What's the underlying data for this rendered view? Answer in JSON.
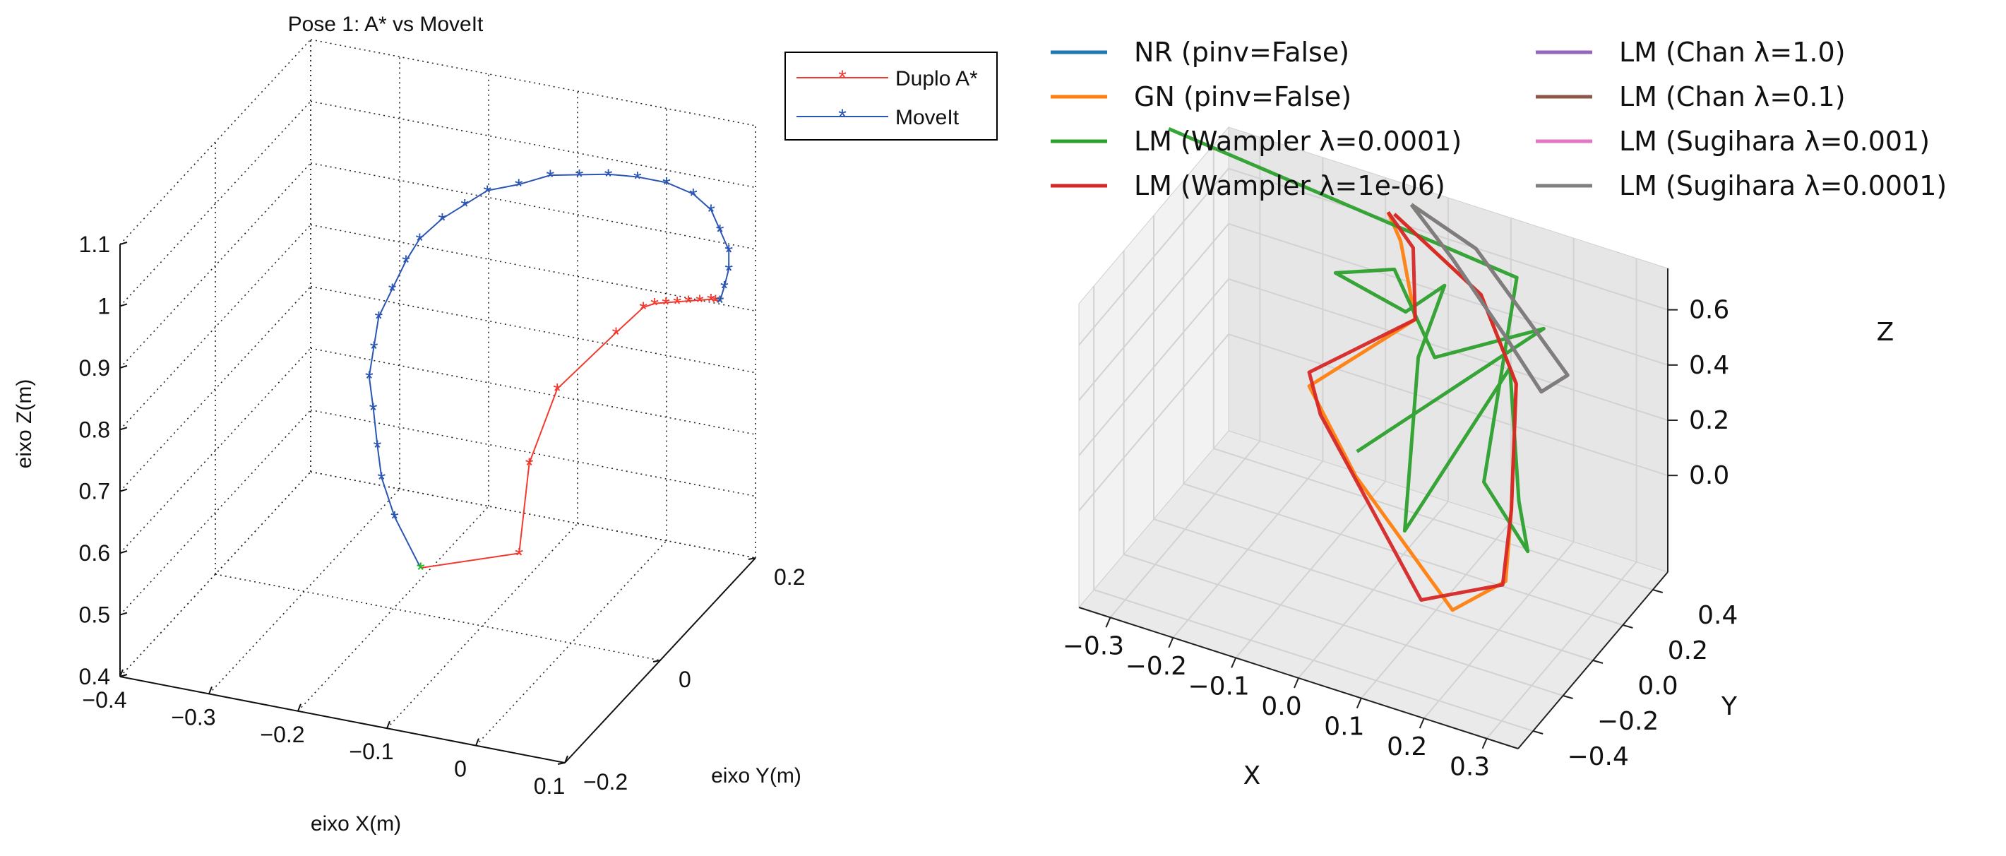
{
  "chart_data": [
    {
      "type": "line3d",
      "title": "Pose 1: A* vs MoveIt",
      "xlabel": "eixo X(m)",
      "ylabel": "eixo Y(m)",
      "zlabel": "eixo Z(m)",
      "xlim": [
        -0.4,
        0.1
      ],
      "ylim": [
        -0.2,
        0.2
      ],
      "zlim": [
        0.4,
        1.1
      ],
      "xticks": [
        "−0.4",
        "−0.3",
        "−0.2",
        "−0.1",
        "0",
        "0.1"
      ],
      "yticks": [
        "−0.2",
        "0",
        "0.2"
      ],
      "zticks": [
        "0.4",
        "0.5",
        "0.6",
        "0.7",
        "0.8",
        "0.9",
        "1",
        "1.1"
      ],
      "grid": true,
      "legend": "top-right",
      "series": [
        {
          "name": "Duplo A*",
          "color": "#f03a30",
          "marker": "*",
          "points": [
            [
              -0.18,
              0.02,
              0.455
            ],
            [
              -0.08,
              0.04,
              0.49
            ],
            [
              -0.09,
              0.08,
              0.6
            ],
            [
              -0.08,
              0.12,
              0.69
            ],
            [
              -0.03,
              0.15,
              0.77
            ],
            [
              -0.01,
              0.17,
              0.8
            ],
            [
              0.0,
              0.175,
              0.805
            ],
            [
              0.01,
              0.18,
              0.805
            ],
            [
              0.02,
              0.185,
              0.805
            ],
            [
              0.03,
              0.19,
              0.805
            ],
            [
              0.04,
              0.195,
              0.805
            ],
            [
              0.05,
              0.2,
              0.805
            ],
            [
              0.055,
              0.2,
              0.805
            ],
            [
              0.06,
              0.2,
              0.805
            ]
          ]
        },
        {
          "name": "MoveIt",
          "color": "#2b55b3",
          "marker": "*",
          "points": [
            [
              -0.18,
              0.02,
              0.455
            ],
            [
              -0.22,
              0.04,
              0.51
            ],
            [
              -0.24,
              0.05,
              0.56
            ],
            [
              -0.25,
              0.06,
              0.6
            ],
            [
              -0.26,
              0.07,
              0.65
            ],
            [
              -0.27,
              0.08,
              0.69
            ],
            [
              -0.27,
              0.09,
              0.73
            ],
            [
              -0.27,
              0.1,
              0.77
            ],
            [
              -0.26,
              0.11,
              0.81
            ],
            [
              -0.25,
              0.12,
              0.85
            ],
            [
              -0.24,
              0.13,
              0.88
            ],
            [
              -0.22,
              0.14,
              0.91
            ],
            [
              -0.2,
              0.15,
              0.93
            ],
            [
              -0.18,
              0.16,
              0.95
            ],
            [
              -0.15,
              0.17,
              0.96
            ],
            [
              -0.12,
              0.18,
              0.975
            ],
            [
              -0.09,
              0.185,
              0.98
            ],
            [
              -0.06,
              0.19,
              0.985
            ],
            [
              -0.03,
              0.195,
              0.985
            ],
            [
              0.0,
              0.2,
              0.98
            ],
            [
              0.03,
              0.2,
              0.97
            ],
            [
              0.05,
              0.2,
              0.95
            ],
            [
              0.06,
              0.2,
              0.92
            ],
            [
              0.07,
              0.2,
              0.89
            ],
            [
              0.07,
              0.2,
              0.86
            ],
            [
              0.065,
              0.2,
              0.83
            ],
            [
              0.06,
              0.2,
              0.805
            ]
          ]
        }
      ]
    },
    {
      "type": "line3d",
      "xlabel": "X",
      "ylabel": "Y",
      "zlabel": "Z",
      "xticks": [
        "−0.3",
        "−0.2",
        "−0.1",
        "0.0",
        "0.1",
        "0.2",
        "0.3"
      ],
      "yticks": [
        "−0.4",
        "−0.2",
        "0.0",
        "0.2",
        "0.4"
      ],
      "zticks": [
        "0.0",
        "0.2",
        "0.4",
        "0.6"
      ],
      "grid": true,
      "legend": "top",
      "series": [
        {
          "name": "NR (pinv=False)",
          "color": "#1f77b4",
          "points": []
        },
        {
          "name": "GN (pinv=False)",
          "color": "#ff7f0e",
          "points": [
            [
              -0.06,
              0.35,
              0.75
            ],
            [
              -0.04,
              0.35,
              0.66
            ],
            [
              0.0,
              0.28,
              0.45
            ],
            [
              -0.15,
              0.2,
              0.15
            ],
            [
              -0.04,
              0.05,
              0.0
            ],
            [
              0.15,
              -0.1,
              -0.25
            ],
            [
              0.23,
              -0.08,
              -0.1
            ],
            [
              0.22,
              0.0,
              0.1
            ],
            [
              0.18,
              0.2,
              0.4
            ],
            [
              0.1,
              0.3,
              0.6
            ],
            [
              -0.05,
              0.35,
              0.75
            ]
          ]
        },
        {
          "name": "LM (Wampler λ=0.0001)",
          "color": "#2ca02c",
          "points": [
            [
              -0.35,
              0.1,
              1.0
            ],
            [
              0.2,
              0.12,
              0.85
            ],
            [
              0.2,
              -0.1,
              0.25
            ],
            [
              0.27,
              -0.1,
              0.05
            ],
            [
              0.22,
              0.05,
              0.1
            ],
            [
              0.17,
              0.2,
              0.45
            ],
            [
              0.05,
              0.0,
              -0.1
            ],
            [
              0.0,
              0.3,
              0.3
            ],
            [
              0.03,
              0.35,
              0.55
            ],
            [
              -0.02,
              0.3,
              0.45
            ],
            [
              -0.12,
              0.25,
              0.55
            ],
            [
              -0.05,
              0.35,
              0.55
            ],
            [
              0.05,
              0.2,
              0.4
            ],
            [
              0.2,
              0.3,
              0.55
            ],
            [
              -0.05,
              0.1,
              0.05
            ]
          ]
        },
        {
          "name": "LM (Wampler λ=1e-06)",
          "color": "#d62728",
          "points": [
            [
              -0.06,
              0.35,
              0.75
            ],
            [
              -0.02,
              0.35,
              0.65
            ],
            [
              0.0,
              0.28,
              0.45
            ],
            [
              -0.15,
              0.2,
              0.2
            ],
            [
              -0.12,
              0.15,
              0.1
            ],
            [
              0.1,
              -0.1,
              -0.25
            ],
            [
              0.23,
              -0.1,
              -0.1
            ],
            [
              0.22,
              0.0,
              0.1
            ],
            [
              0.18,
              0.2,
              0.4
            ],
            [
              0.1,
              0.3,
              0.6
            ],
            [
              -0.05,
              0.35,
              0.75
            ]
          ]
        },
        {
          "name": "LM (Chan λ=1.0)",
          "color": "#9467bd",
          "points": [
            [
              -0.03,
              0.38,
              0.78
            ],
            [
              0.08,
              0.35,
              0.72
            ],
            [
              0.18,
              0.3,
              0.55
            ],
            [
              0.25,
              0.25,
              0.45
            ],
            [
              0.22,
              0.2,
              0.4
            ],
            [
              0.15,
              0.25,
              0.52
            ],
            [
              0.05,
              0.32,
              0.68
            ],
            [
              -0.03,
              0.38,
              0.78
            ]
          ]
        },
        {
          "name": "LM (Chan λ=0.1)",
          "color": "#8c564b",
          "points": [
            [
              -0.03,
              0.38,
              0.78
            ],
            [
              0.08,
              0.35,
              0.72
            ],
            [
              0.18,
              0.3,
              0.55
            ],
            [
              0.25,
              0.25,
              0.45
            ],
            [
              0.22,
              0.2,
              0.4
            ],
            [
              0.15,
              0.25,
              0.52
            ],
            [
              0.05,
              0.32,
              0.68
            ],
            [
              -0.03,
              0.38,
              0.78
            ]
          ]
        },
        {
          "name": "LM (Sugihara λ=0.001)",
          "color": "#e377c2",
          "points": []
        },
        {
          "name": "LM (Sugihara λ=0.0001)",
          "color": "#7f7f7f",
          "points": [
            [
              -0.03,
              0.38,
              0.78
            ],
            [
              0.08,
              0.35,
              0.72
            ],
            [
              0.18,
              0.3,
              0.55
            ],
            [
              0.25,
              0.25,
              0.45
            ],
            [
              0.22,
              0.2,
              0.4
            ],
            [
              0.15,
              0.25,
              0.52
            ],
            [
              0.05,
              0.32,
              0.68
            ],
            [
              -0.03,
              0.38,
              0.78
            ]
          ]
        }
      ]
    }
  ]
}
